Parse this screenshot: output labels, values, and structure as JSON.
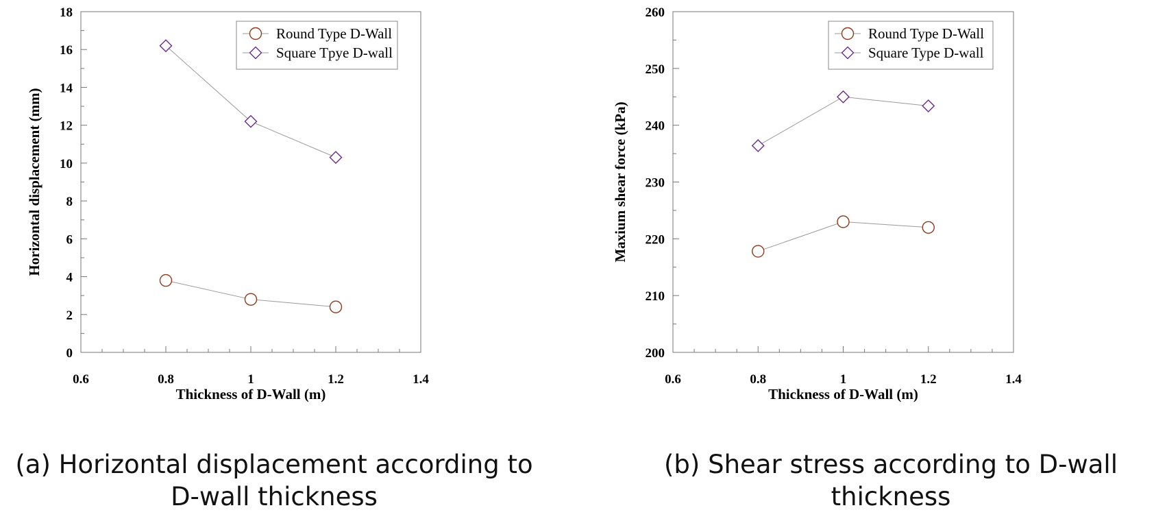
{
  "chart_data": [
    {
      "type": "line",
      "xlabel": "Thickness of D-Wall (m)",
      "ylabel": "Horizontal displacement (mm)",
      "xlim": [
        0.6,
        1.4
      ],
      "ylim": [
        0,
        18
      ],
      "xticks": [
        0.6,
        0.8,
        1,
        1.2,
        1.4
      ],
      "xtick_labels": [
        "0.6",
        "0.8",
        "1",
        "1.2",
        "1.4"
      ],
      "yticks": [
        0,
        2,
        4,
        6,
        8,
        10,
        12,
        14,
        16,
        18
      ],
      "ytick_labels": [
        "0",
        "2",
        "4",
        "6",
        "8",
        "10",
        "12",
        "14",
        "16",
        "18"
      ],
      "grid": false,
      "legend_position": "top-right",
      "series": [
        {
          "name": "Round Type D-Wall",
          "marker": "circle",
          "color": "#8B3A1A",
          "x": [
            0.8,
            1.0,
            1.2
          ],
          "values": [
            3.8,
            2.8,
            2.4
          ]
        },
        {
          "name": "Square Tpye D-wall",
          "marker": "diamond",
          "color": "#6A2C8E",
          "x": [
            0.8,
            1.0,
            1.2
          ],
          "values": [
            16.2,
            12.2,
            10.3
          ]
        }
      ],
      "caption_lines": [
        "(a) Horizontal displacement according to",
        "D-wall thickness"
      ]
    },
    {
      "type": "line",
      "xlabel": "Thickness of D-Wall (m)",
      "ylabel": "Maxium shear force (kPa)",
      "xlim": [
        0.6,
        1.4
      ],
      "ylim": [
        200,
        260
      ],
      "xticks": [
        0.6,
        0.8,
        1,
        1.2,
        1.4
      ],
      "xtick_labels": [
        "0.6",
        "0.8",
        "1",
        "1.2",
        "1.4"
      ],
      "yticks": [
        200,
        210,
        220,
        230,
        240,
        250,
        260
      ],
      "ytick_labels": [
        "200",
        "210",
        "220",
        "230",
        "240",
        "250",
        "260"
      ],
      "grid": false,
      "legend_position": "top-right",
      "series": [
        {
          "name": "Round Type D-Wall",
          "marker": "circle",
          "color": "#8B3A1A",
          "x": [
            0.8,
            1.0,
            1.2
          ],
          "values": [
            217.8,
            223.0,
            222.0
          ]
        },
        {
          "name": "Square Type D-wall",
          "marker": "diamond",
          "color": "#6A2C8E",
          "x": [
            0.8,
            1.0,
            1.2
          ],
          "values": [
            236.4,
            245.0,
            243.4
          ]
        }
      ],
      "caption_lines": [
        "(b) Shear stress according to D-wall thickness"
      ]
    }
  ]
}
